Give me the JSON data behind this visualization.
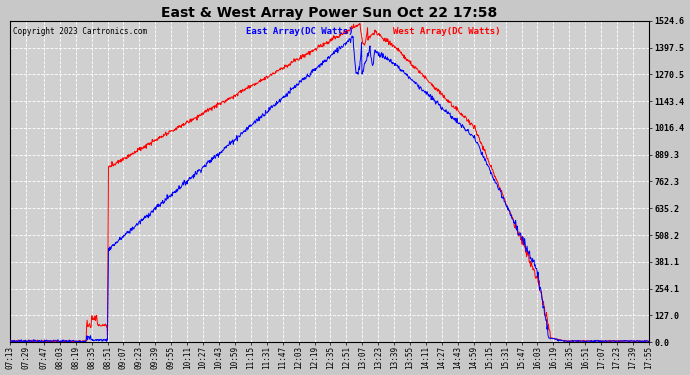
{
  "title": "East & West Array Power Sun Oct 22 17:58",
  "copyright": "Copyright 2023 Cartronics.com",
  "legend_east": "East Array(DC Watts)",
  "legend_west": "West Array(DC Watts)",
  "east_color": "blue",
  "west_color": "red",
  "background_color": "#c8c8c8",
  "plot_bg_color": "#d0d0d0",
  "grid_color": "#ffffff",
  "ymin": 0.0,
  "ymax": 1524.6,
  "yticks": [
    0.0,
    127.0,
    254.1,
    381.1,
    508.2,
    635.2,
    762.3,
    889.3,
    1016.4,
    1143.4,
    1270.5,
    1397.5,
    1524.6
  ],
  "xtick_labels": [
    "07:13",
    "07:29",
    "07:47",
    "08:03",
    "08:19",
    "08:35",
    "08:51",
    "09:07",
    "09:23",
    "09:39",
    "09:55",
    "10:11",
    "10:27",
    "10:43",
    "10:59",
    "11:15",
    "11:31",
    "11:47",
    "12:03",
    "12:19",
    "12:35",
    "12:51",
    "13:07",
    "13:23",
    "13:39",
    "13:55",
    "14:11",
    "14:27",
    "14:43",
    "14:59",
    "15:15",
    "15:31",
    "15:47",
    "16:03",
    "16:19",
    "16:35",
    "16:51",
    "17:07",
    "17:23",
    "17:39",
    "17:55"
  ]
}
